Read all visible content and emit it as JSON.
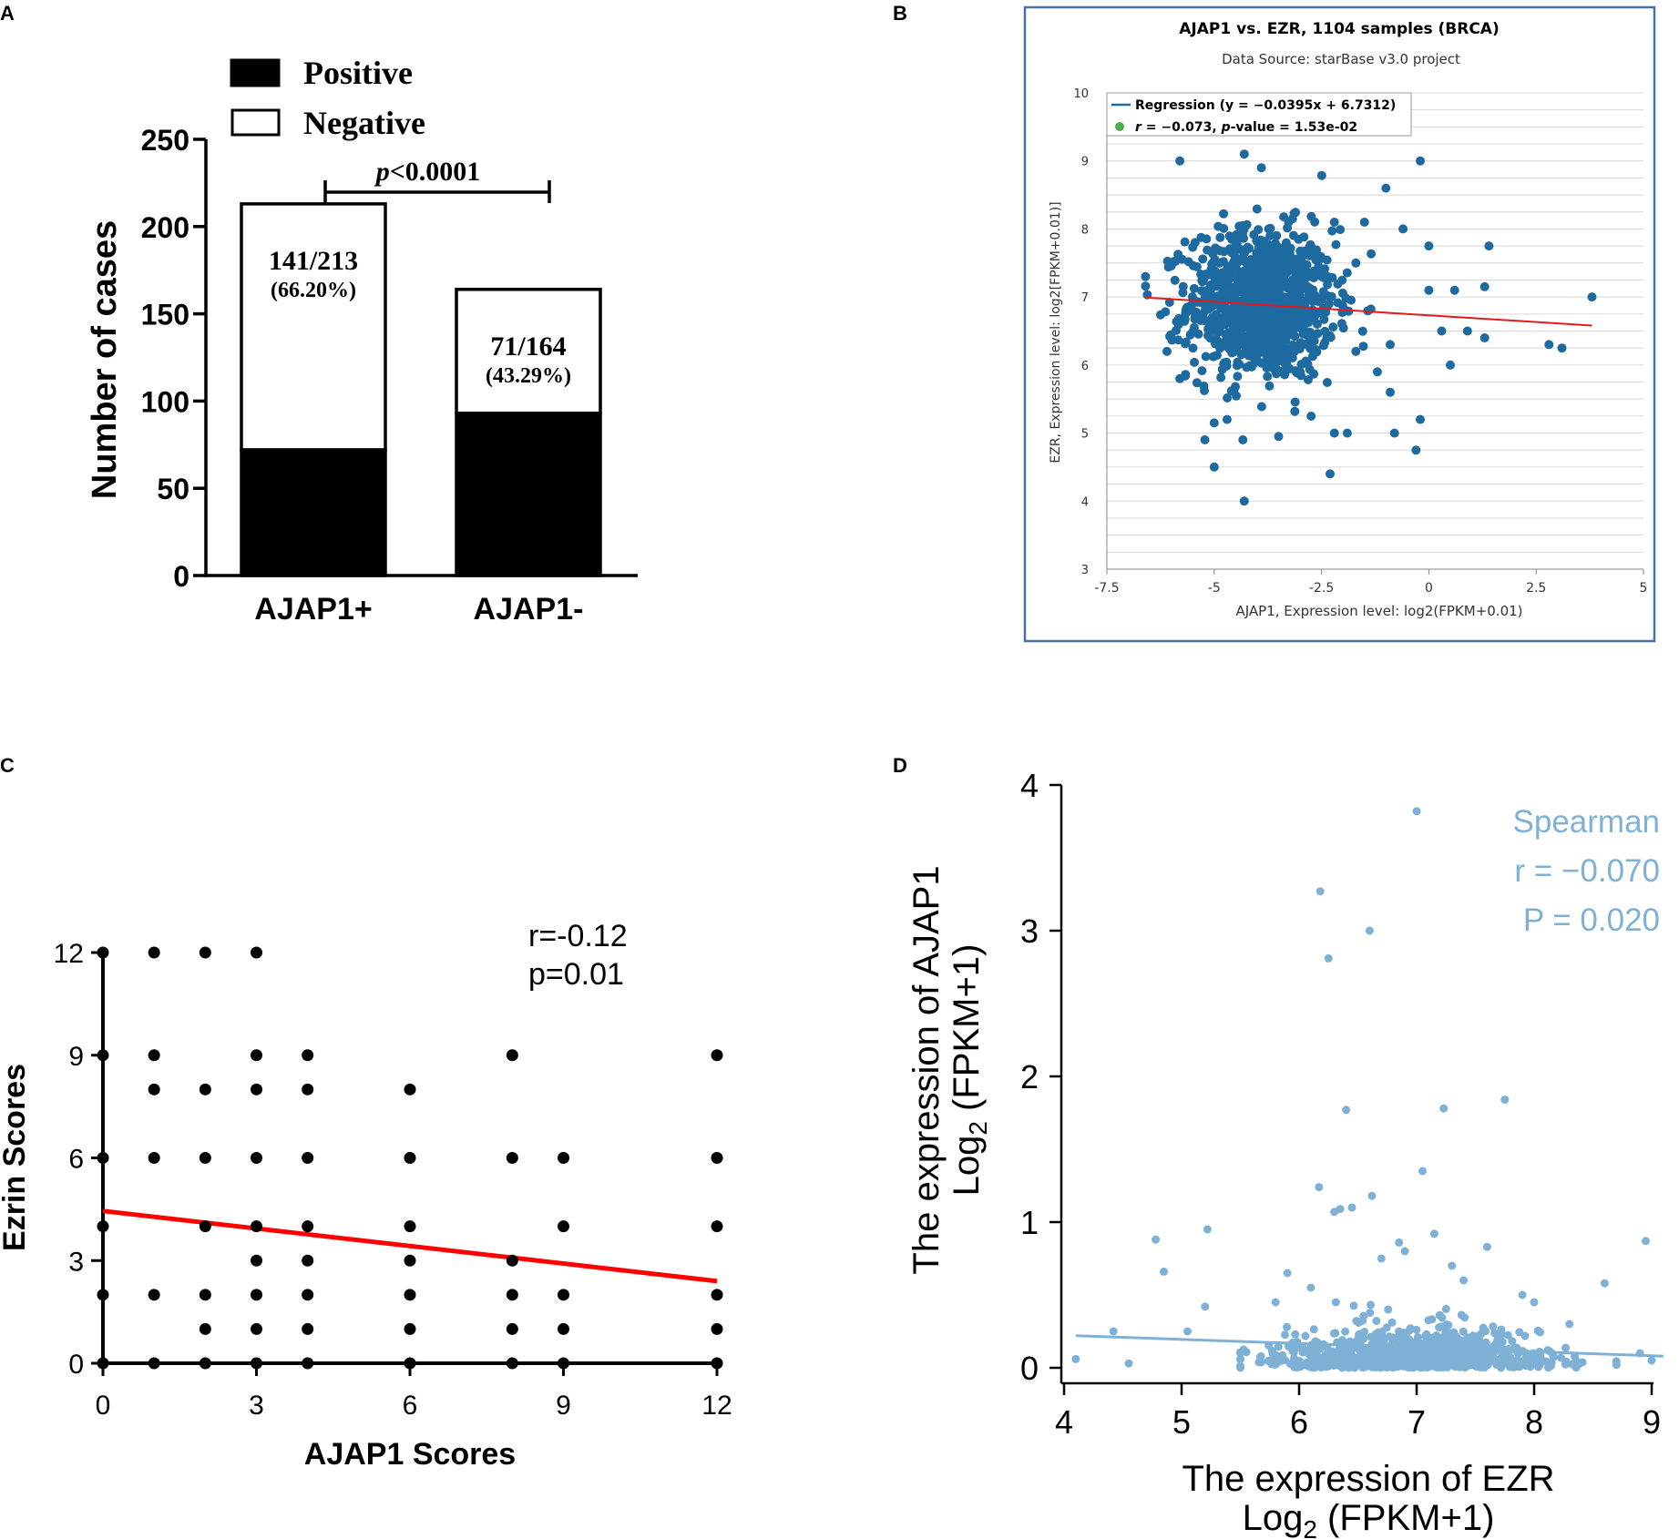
{
  "chart_data": [
    {
      "panel": "A",
      "type": "bar",
      "stacked": true,
      "categories": [
        "AJAP1+",
        "AJAP1-"
      ],
      "series": [
        {
          "name": "Positive",
          "color": "#000000",
          "values": [
            72,
            93
          ]
        },
        {
          "name": "Negative",
          "color": "#ffffff",
          "values": [
            141,
            71
          ]
        }
      ],
      "totals": [
        213,
        164
      ],
      "bar_labels": [
        {
          "fraction": "141/213",
          "percent": "(66.20%)"
        },
        {
          "fraction": "71/164",
          "percent": "(43.29%)"
        }
      ],
      "ylabel": "Number of cases",
      "ylim": [
        0,
        250
      ],
      "yticks": [
        0,
        50,
        100,
        150,
        200,
        250
      ],
      "significance": {
        "p_label": "p",
        "p_rest": "<0.0001"
      },
      "legend": "top-left"
    },
    {
      "panel": "B",
      "type": "scatter",
      "title": "AJAP1 vs. EZR, 1104 samples (BRCA)",
      "subtitle": "Data Source: starBase v3.0 project",
      "xlabel": "AJAP1, Expression level: log2(FPKM+0.01)",
      "ylabel": "EZR, Expression level: log2[FPKM+0.01)]",
      "xlim": [
        -7.5,
        5
      ],
      "ylim": [
        3,
        10
      ],
      "xticks": [
        "-7.5",
        "-5",
        "-2.5",
        "0",
        "2.5",
        "5"
      ],
      "yticks": [
        "3",
        "4",
        "5",
        "6",
        "7",
        "8",
        "9",
        "10"
      ],
      "n": 1104,
      "regression": {
        "slope": -0.0395,
        "intercept": 6.7312,
        "x_range": [
          -6.6,
          3.8
        ]
      },
      "legend_regression": "Regression (y = −0.0395x + 6.7312)",
      "legend_stat": {
        "r_name": "r",
        "r_rest": " = −0.073, ",
        "p_name": "p",
        "p_rest": "-value = 1.53e-02"
      },
      "point_color": "#1d6aa0",
      "line_color": "#e31a1c",
      "outliers": [
        [
          -5.8,
          9.0
        ],
        [
          -4.3,
          9.1
        ],
        [
          -3.9,
          8.9
        ],
        [
          -0.2,
          9.0
        ],
        [
          -1.0,
          8.6
        ],
        [
          -2.2,
          8.1
        ],
        [
          -1.5,
          8.1
        ],
        [
          -0.6,
          8.0
        ],
        [
          0.0,
          7.75
        ],
        [
          1.4,
          7.75
        ],
        [
          1.3,
          7.15
        ],
        [
          0.6,
          7.1
        ],
        [
          0.0,
          7.1
        ],
        [
          3.8,
          7.0
        ],
        [
          0.3,
          6.5
        ],
        [
          0.9,
          6.5
        ],
        [
          1.3,
          6.4
        ],
        [
          2.8,
          6.3
        ],
        [
          3.1,
          6.25
        ],
        [
          -0.9,
          6.3
        ],
        [
          0.5,
          6.0
        ],
        [
          -0.2,
          5.2
        ],
        [
          -0.8,
          5.0
        ],
        [
          -0.3,
          4.75
        ],
        [
          -2.3,
          4.4
        ],
        [
          -4.3,
          4.0
        ],
        [
          -5.0,
          4.5
        ],
        [
          -5.0,
          5.15
        ],
        [
          -2.2,
          5.0
        ],
        [
          -1.9,
          5.0
        ],
        [
          -3.5,
          4.95
        ],
        [
          -4.7,
          5.2
        ],
        [
          -6.6,
          7.3
        ],
        [
          -6.1,
          6.2
        ],
        [
          -5.8,
          5.8
        ],
        [
          -2.6,
          6.6
        ],
        [
          -1.7,
          6.2
        ],
        [
          -1.2,
          5.9
        ],
        [
          -0.9,
          5.6
        ],
        [
          -1.7,
          7.5
        ]
      ]
    },
    {
      "panel": "C",
      "type": "scatter",
      "xlabel": "AJAP1 Scores",
      "ylabel": "Ezrin Scores",
      "xlim": [
        0,
        12
      ],
      "ylim": [
        0,
        12
      ],
      "xticks": [
        0,
        3,
        6,
        9,
        12
      ],
      "yticks": [
        0,
        3,
        6,
        9,
        12
      ],
      "stat_r": "r=-0.12",
      "stat_p": "p=0.01",
      "regression": {
        "y_at_x0": 4.45,
        "y_at_x12": 2.4
      },
      "point_color": "#000000",
      "line_color": "#ff0000",
      "points": [
        [
          0,
          12
        ],
        [
          0,
          9
        ],
        [
          0,
          6
        ],
        [
          0,
          4
        ],
        [
          0,
          2
        ],
        [
          0,
          0
        ],
        [
          1,
          12
        ],
        [
          1,
          9
        ],
        [
          1,
          8
        ],
        [
          1,
          6
        ],
        [
          1,
          2
        ],
        [
          1,
          0
        ],
        [
          2,
          12
        ],
        [
          2,
          8
        ],
        [
          2,
          6
        ],
        [
          2,
          4
        ],
        [
          2,
          2
        ],
        [
          2,
          1
        ],
        [
          2,
          0
        ],
        [
          3,
          12
        ],
        [
          3,
          9
        ],
        [
          3,
          8
        ],
        [
          3,
          6
        ],
        [
          3,
          4
        ],
        [
          3,
          3
        ],
        [
          3,
          2
        ],
        [
          3,
          1
        ],
        [
          3,
          0
        ],
        [
          4,
          9
        ],
        [
          4,
          8
        ],
        [
          4,
          6
        ],
        [
          4,
          4
        ],
        [
          4,
          3
        ],
        [
          4,
          2
        ],
        [
          4,
          1
        ],
        [
          4,
          0
        ],
        [
          6,
          8
        ],
        [
          6,
          6
        ],
        [
          6,
          4
        ],
        [
          6,
          3
        ],
        [
          6,
          2
        ],
        [
          6,
          1
        ],
        [
          6,
          0
        ],
        [
          8,
          9
        ],
        [
          8,
          6
        ],
        [
          8,
          3
        ],
        [
          8,
          2
        ],
        [
          8,
          1
        ],
        [
          8,
          0
        ],
        [
          9,
          6
        ],
        [
          9,
          4
        ],
        [
          9,
          2
        ],
        [
          9,
          1
        ],
        [
          9,
          0
        ],
        [
          12,
          9
        ],
        [
          12,
          6
        ],
        [
          12,
          4
        ],
        [
          12,
          2
        ],
        [
          12,
          1
        ],
        [
          12,
          0
        ]
      ]
    },
    {
      "panel": "D",
      "type": "scatter",
      "xlabel_line1": "The expression of EZR",
      "xlabel_log": "Log",
      "xlabel_sub": "2",
      "xlabel_rest": " (FPKM+1)",
      "ylabel_line1": "The expression of AJAP1",
      "ylabel_log": "Log",
      "ylabel_sub": "2",
      "ylabel_rest": " (FPKM+1)",
      "xlim": [
        4,
        9
      ],
      "ylim": [
        0,
        4
      ],
      "xticks": [
        4,
        5,
        6,
        7,
        8,
        9
      ],
      "yticks": [
        0,
        1,
        2,
        3,
        4
      ],
      "stat_method": "Spearman",
      "stat_r": "r = −0.070",
      "stat_p": "P = 0.020",
      "regression": {
        "y_at_x4_1": 0.22,
        "y_at_x9_1": 0.08
      },
      "point_color": "#7fb1d6",
      "outliers": [
        [
          7.0,
          3.82
        ],
        [
          6.18,
          3.27
        ],
        [
          6.6,
          3.0
        ],
        [
          6.25,
          2.81
        ],
        [
          7.23,
          1.78
        ],
        [
          6.4,
          1.77
        ],
        [
          7.75,
          1.84
        ],
        [
          6.17,
          1.24
        ],
        [
          7.05,
          1.35
        ],
        [
          6.62,
          1.18
        ],
        [
          6.35,
          1.09
        ],
        [
          6.45,
          1.1
        ],
        [
          6.3,
          1.07
        ],
        [
          4.78,
          0.88
        ],
        [
          5.22,
          0.95
        ],
        [
          7.15,
          0.92
        ],
        [
          8.95,
          0.87
        ],
        [
          6.85,
          0.86
        ],
        [
          7.6,
          0.83
        ],
        [
          6.9,
          0.8
        ],
        [
          4.42,
          0.25
        ],
        [
          4.1,
          0.06
        ],
        [
          4.55,
          0.03
        ],
        [
          5.05,
          0.25
        ],
        [
          4.85,
          0.66
        ],
        [
          5.2,
          0.42
        ],
        [
          5.5,
          0.1
        ],
        [
          8.6,
          0.58
        ],
        [
          8.9,
          0.1
        ],
        [
          9.0,
          0.05
        ],
        [
          5.8,
          0.45
        ],
        [
          6.1,
          0.55
        ],
        [
          7.4,
          0.6
        ],
        [
          7.9,
          0.5
        ],
        [
          8.3,
          0.3
        ],
        [
          5.9,
          0.65
        ],
        [
          6.7,
          0.75
        ],
        [
          7.3,
          0.7
        ],
        [
          8.0,
          0.45
        ]
      ]
    }
  ],
  "panel_letters": [
    "A",
    "B",
    "C",
    "D"
  ]
}
